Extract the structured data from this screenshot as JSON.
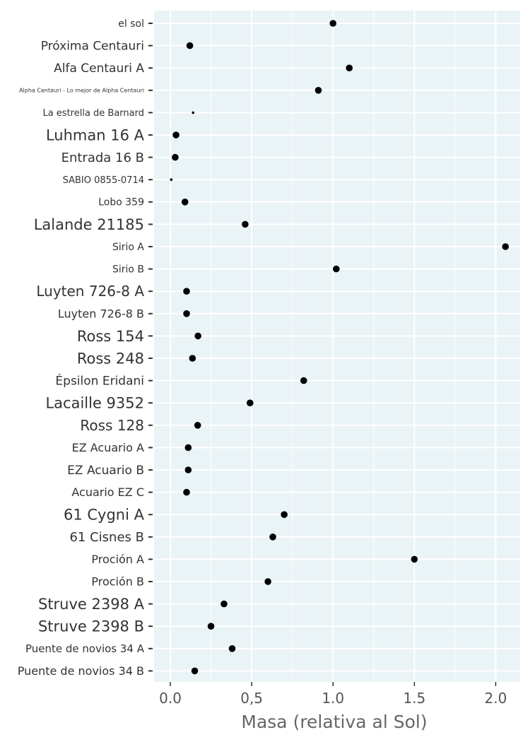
{
  "chart_data": {
    "type": "scatter",
    "xlabel": "Masa (relativa al Sol)",
    "xlim": [
      -0.1,
      2.15
    ],
    "x_ticks": [
      0,
      0.5,
      1,
      1.5,
      2
    ],
    "x_tick_labels": [
      "0.0",
      "0,5",
      "1.0",
      "1.5",
      "2.0"
    ],
    "grid": true,
    "legend": "none",
    "colors": {
      "panel": "#eaf3f6",
      "grid": "#ffffff",
      "point": "#000000"
    },
    "categories": [
      "el sol",
      "Próxima Centauri",
      "Alfa Centauri A",
      "Alpha Centauri - Lo mejor de Alpha Centauri",
      "La estrella de Barnard",
      "Luhman 16 A",
      "Entrada 16 B",
      "SABIO 0855-0714",
      "Lobo 359",
      "Lalande 21185",
      "Sirio A",
      "Sirio B",
      "Luyten 726-8 A",
      "Luyten 726-8 B",
      "Ross 154",
      "Ross 248",
      "Épsilon Eridani",
      "Lacaille 9352",
      "Ross 128",
      "EZ Acuario A",
      "EZ Acuario B",
      "Acuario EZ C",
      "61 Cygni A",
      "61 Cisnes B",
      "Proción A",
      "Proción B",
      "Struve 2398 A",
      "Struve 2398 B",
      "Puente de novios 34 A",
      "Puente de novios 34 B"
    ],
    "values": [
      1.0,
      0.12,
      1.1,
      0.91,
      0.14,
      0.035,
      0.03,
      0.006,
      0.09,
      0.46,
      2.06,
      1.02,
      0.1,
      0.1,
      0.17,
      0.136,
      0.82,
      0.49,
      0.168,
      0.11,
      0.11,
      0.1,
      0.7,
      0.63,
      1.5,
      0.6,
      0.33,
      0.25,
      0.38,
      0.15
    ]
  }
}
